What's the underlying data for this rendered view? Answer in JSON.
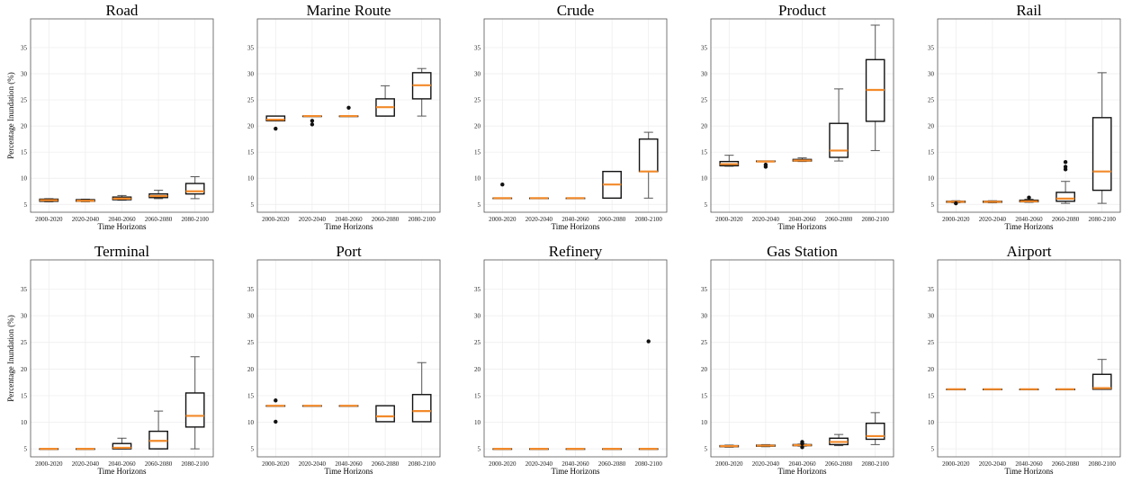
{
  "chart_data": [
    {
      "type": "box",
      "title": "Road",
      "xlabel": "Time Horizons",
      "ylabel": "Percentage Inundation (%)",
      "ylim": [
        3.5,
        40.5
      ],
      "yticks": [
        5,
        10,
        15,
        20,
        25,
        30,
        35
      ],
      "categories": [
        "2000-2020",
        "2020-2040",
        "2040-2060",
        "2060-2080",
        "2080-2100"
      ],
      "boxes": [
        {
          "min": 5.5,
          "q1": 5.6,
          "median": 5.8,
          "q3": 6,
          "max": 6.1,
          "fliers": []
        },
        {
          "min": 5.5,
          "q1": 5.6,
          "median": 5.7,
          "q3": 5.9,
          "max": 6,
          "fliers": []
        },
        {
          "min": 5.8,
          "q1": 5.9,
          "median": 6.1,
          "q3": 6.4,
          "max": 6.7,
          "fliers": []
        },
        {
          "min": 6.1,
          "q1": 6.3,
          "median": 6.6,
          "q3": 7,
          "max": 7.7,
          "fliers": []
        },
        {
          "min": 6.1,
          "q1": 7,
          "median": 7.5,
          "q3": 9,
          "max": 10.3,
          "fliers": []
        }
      ]
    },
    {
      "type": "box",
      "title": "Marine Route",
      "xlabel": "Time Horizons",
      "ylabel": "",
      "ylim": [
        3.5,
        40.5
      ],
      "yticks": [
        5,
        10,
        15,
        20,
        25,
        30,
        35
      ],
      "categories": [
        "2000-2020",
        "2020-2040",
        "2040-2060",
        "2060-2080",
        "2080-2100"
      ],
      "boxes": [
        {
          "min": 21,
          "q1": 21,
          "median": 21.2,
          "q3": 21.9,
          "max": 21.9,
          "fliers": [
            19.5
          ]
        },
        {
          "min": 21.9,
          "q1": 21.9,
          "median": 21.9,
          "q3": 21.9,
          "max": 21.9,
          "fliers": [
            20.3,
            21
          ]
        },
        {
          "min": 21.9,
          "q1": 21.9,
          "median": 21.9,
          "q3": 21.9,
          "max": 21.9,
          "fliers": [
            23.5
          ]
        },
        {
          "min": 21.9,
          "q1": 21.9,
          "median": 23.6,
          "q3": 25.2,
          "max": 27.7,
          "fliers": []
        },
        {
          "min": 21.9,
          "q1": 25.2,
          "median": 27.8,
          "q3": 30.2,
          "max": 31,
          "fliers": []
        }
      ]
    },
    {
      "type": "box",
      "title": "Crude",
      "xlabel": "Time Horizons",
      "ylabel": "",
      "ylim": [
        3.5,
        40.5
      ],
      "yticks": [
        5,
        10,
        15,
        20,
        25,
        30,
        35
      ],
      "categories": [
        "2000-2020",
        "2020-2040",
        "2040-2060",
        "2060-2080",
        "2080-2100"
      ],
      "boxes": [
        {
          "min": 6.2,
          "q1": 6.2,
          "median": 6.2,
          "q3": 6.2,
          "max": 6.2,
          "fliers": [
            8.8
          ]
        },
        {
          "min": 6.2,
          "q1": 6.2,
          "median": 6.2,
          "q3": 6.2,
          "max": 6.2,
          "fliers": []
        },
        {
          "min": 6.2,
          "q1": 6.2,
          "median": 6.2,
          "q3": 6.2,
          "max": 6.2,
          "fliers": []
        },
        {
          "min": 6.2,
          "q1": 6.2,
          "median": 8.8,
          "q3": 11.3,
          "max": 11.3,
          "fliers": []
        },
        {
          "min": 6.2,
          "q1": 11.3,
          "median": 11.3,
          "q3": 17.5,
          "max": 18.8,
          "fliers": []
        }
      ]
    },
    {
      "type": "box",
      "title": "Product",
      "xlabel": "Time Horizons",
      "ylabel": "",
      "ylim": [
        3.5,
        40.5
      ],
      "yticks": [
        5,
        10,
        15,
        20,
        25,
        30,
        35
      ],
      "categories": [
        "2000-2020",
        "2020-2040",
        "2040-2060",
        "2060-2080",
        "2080-2100"
      ],
      "boxes": [
        {
          "min": 12.3,
          "q1": 12.4,
          "median": 12.7,
          "q3": 13.2,
          "max": 14.4,
          "fliers": []
        },
        {
          "min": 13.2,
          "q1": 13.2,
          "median": 13.2,
          "q3": 13.3,
          "max": 13.3,
          "fliers": [
            12.2,
            12.6
          ]
        },
        {
          "min": 13.2,
          "q1": 13.3,
          "median": 13.4,
          "q3": 13.6,
          "max": 13.9,
          "fliers": []
        },
        {
          "min": 13.3,
          "q1": 14,
          "median": 15.3,
          "q3": 20.5,
          "max": 27.1,
          "fliers": []
        },
        {
          "min": 15.3,
          "q1": 20.9,
          "median": 26.9,
          "q3": 32.7,
          "max": 39.3,
          "fliers": []
        }
      ]
    },
    {
      "type": "box",
      "title": "Rail",
      "xlabel": "Time Horizons",
      "ylabel": "",
      "ylim": [
        3.5,
        40.5
      ],
      "yticks": [
        5,
        10,
        15,
        20,
        25,
        30,
        35
      ],
      "categories": [
        "2000-2020",
        "2020-2040",
        "2040-2060",
        "2060-2080",
        "2080-2100"
      ],
      "boxes": [
        {
          "min": 5.3,
          "q1": 5.4,
          "median": 5.5,
          "q3": 5.6,
          "max": 5.7,
          "fliers": [
            5.2
          ]
        },
        {
          "min": 5.3,
          "q1": 5.4,
          "median": 5.5,
          "q3": 5.6,
          "max": 5.7,
          "fliers": []
        },
        {
          "min": 5.4,
          "q1": 5.5,
          "median": 5.6,
          "q3": 5.8,
          "max": 6,
          "fliers": [
            6.3
          ]
        },
        {
          "min": 5.2,
          "q1": 5.6,
          "median": 6.1,
          "q3": 7.3,
          "max": 9.4,
          "fliers": [
            11.7,
            12.2,
            13.1
          ]
        },
        {
          "min": 5.2,
          "q1": 7.7,
          "median": 11.3,
          "q3": 21.6,
          "max": 30.2,
          "fliers": []
        }
      ]
    },
    {
      "type": "box",
      "title": "Terminal",
      "xlabel": "Time Horizons",
      "ylabel": "Percentage Inundation (%)",
      "ylim": [
        3.5,
        40.5
      ],
      "yticks": [
        5,
        10,
        15,
        20,
        25,
        30,
        35
      ],
      "categories": [
        "2000-2020",
        "2020-2040",
        "2040-2060",
        "2060-2080",
        "2080-2100"
      ],
      "boxes": [
        {
          "min": 5,
          "q1": 5,
          "median": 5,
          "q3": 5,
          "max": 5,
          "fliers": []
        },
        {
          "min": 5,
          "q1": 5,
          "median": 5,
          "q3": 5,
          "max": 5,
          "fliers": []
        },
        {
          "min": 5,
          "q1": 5,
          "median": 5.2,
          "q3": 6,
          "max": 7,
          "fliers": []
        },
        {
          "min": 5,
          "q1": 5,
          "median": 6.5,
          "q3": 8.3,
          "max": 12.1,
          "fliers": []
        },
        {
          "min": 5,
          "q1": 9.1,
          "median": 11.2,
          "q3": 15.5,
          "max": 22.3,
          "fliers": []
        }
      ]
    },
    {
      "type": "box",
      "title": "Port",
      "xlabel": "Time Horizons",
      "ylabel": "",
      "ylim": [
        3.5,
        40.5
      ],
      "yticks": [
        5,
        10,
        15,
        20,
        25,
        30,
        35
      ],
      "categories": [
        "2000-2020",
        "2020-2040",
        "2040-2060",
        "2060-2080",
        "2080-2100"
      ],
      "boxes": [
        {
          "min": 13.1,
          "q1": 13.1,
          "median": 13.1,
          "q3": 13.1,
          "max": 13.1,
          "fliers": [
            10.1,
            14.1
          ]
        },
        {
          "min": 13.1,
          "q1": 13.1,
          "median": 13.1,
          "q3": 13.1,
          "max": 13.1,
          "fliers": []
        },
        {
          "min": 13.1,
          "q1": 13.1,
          "median": 13.1,
          "q3": 13.1,
          "max": 13.1,
          "fliers": []
        },
        {
          "min": 10.1,
          "q1": 10.1,
          "median": 11.1,
          "q3": 13.1,
          "max": 13.1,
          "fliers": []
        },
        {
          "min": 10.1,
          "q1": 10.1,
          "median": 12.1,
          "q3": 15.2,
          "max": 21.2,
          "fliers": []
        }
      ]
    },
    {
      "type": "box",
      "title": "Refinery",
      "xlabel": "Time Horizons",
      "ylabel": "",
      "ylim": [
        3.5,
        40.5
      ],
      "yticks": [
        5,
        10,
        15,
        20,
        25,
        30,
        35
      ],
      "categories": [
        "2000-2020",
        "2020-2040",
        "2040-2060",
        "2060-2080",
        "2080-2100"
      ],
      "boxes": [
        {
          "min": 5,
          "q1": 5,
          "median": 5,
          "q3": 5,
          "max": 5,
          "fliers": []
        },
        {
          "min": 5,
          "q1": 5,
          "median": 5,
          "q3": 5,
          "max": 5,
          "fliers": []
        },
        {
          "min": 5,
          "q1": 5,
          "median": 5,
          "q3": 5,
          "max": 5,
          "fliers": []
        },
        {
          "min": 5,
          "q1": 5,
          "median": 5,
          "q3": 5,
          "max": 5,
          "fliers": []
        },
        {
          "min": 5,
          "q1": 5,
          "median": 5,
          "q3": 5,
          "max": 5,
          "fliers": [
            25.2
          ]
        }
      ]
    },
    {
      "type": "box",
      "title": "Gas Station",
      "xlabel": "Time Horizons",
      "ylabel": "",
      "ylim": [
        3.5,
        40.5
      ],
      "yticks": [
        5,
        10,
        15,
        20,
        25,
        30,
        35
      ],
      "categories": [
        "2000-2020",
        "2020-2040",
        "2040-2060",
        "2060-2080",
        "2080-2100"
      ],
      "boxes": [
        {
          "min": 5.3,
          "q1": 5.4,
          "median": 5.5,
          "q3": 5.6,
          "max": 5.7,
          "fliers": []
        },
        {
          "min": 5.4,
          "q1": 5.5,
          "median": 5.6,
          "q3": 5.7,
          "max": 5.8,
          "fliers": []
        },
        {
          "min": 5.5,
          "q1": 5.6,
          "median": 5.7,
          "q3": 5.8,
          "max": 5.9,
          "fliers": [
            5.3,
            6,
            6.3
          ]
        },
        {
          "min": 5.6,
          "q1": 5.8,
          "median": 6.3,
          "q3": 7,
          "max": 7.7,
          "fliers": []
        },
        {
          "min": 5.8,
          "q1": 6.8,
          "median": 7.4,
          "q3": 9.8,
          "max": 11.8,
          "fliers": []
        }
      ]
    },
    {
      "type": "box",
      "title": "Airport",
      "xlabel": "Time Horizons",
      "ylabel": "",
      "ylim": [
        3.5,
        40.5
      ],
      "yticks": [
        5,
        10,
        15,
        20,
        25,
        30,
        35
      ],
      "categories": [
        "2000-2020",
        "2020-2040",
        "2040-2060",
        "2060-2080",
        "2080-2100"
      ],
      "boxes": [
        {
          "min": 16.2,
          "q1": 16.2,
          "median": 16.2,
          "q3": 16.2,
          "max": 16.2,
          "fliers": []
        },
        {
          "min": 16.2,
          "q1": 16.2,
          "median": 16.2,
          "q3": 16.2,
          "max": 16.2,
          "fliers": []
        },
        {
          "min": 16.2,
          "q1": 16.2,
          "median": 16.2,
          "q3": 16.2,
          "max": 16.2,
          "fliers": []
        },
        {
          "min": 16.2,
          "q1": 16.2,
          "median": 16.2,
          "q3": 16.2,
          "max": 16.2,
          "fliers": []
        },
        {
          "min": 16.2,
          "q1": 16.2,
          "median": 16.4,
          "q3": 19,
          "max": 21.8,
          "fliers": []
        }
      ]
    }
  ],
  "colors": {
    "median": "#f28a2a",
    "box_edge": "#111111",
    "whisker": "#555555",
    "flier": "#111111"
  }
}
